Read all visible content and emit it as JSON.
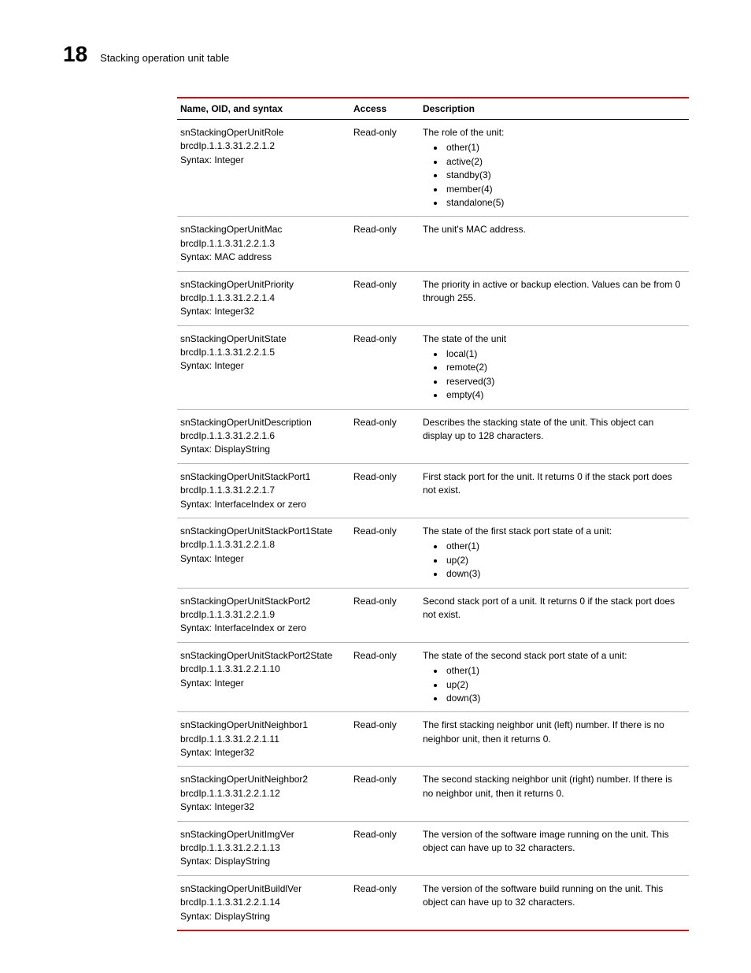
{
  "header": {
    "chapter_number": "18",
    "chapter_title": "Stacking operation unit table"
  },
  "table": {
    "columns": {
      "name": "Name, OID, and syntax",
      "access": "Access",
      "description": "Description"
    },
    "rows": [
      {
        "name": "snStackingOperUnitRole",
        "oid": "brcdIp.1.1.3.31.2.2.1.2",
        "syntax": "Syntax: Integer",
        "access": "Read-only",
        "description_text": "The role of the unit:",
        "bullets": [
          "other(1)",
          "active(2)",
          "standby(3)",
          "member(4)",
          "standalone(5)"
        ]
      },
      {
        "name": "snStackingOperUnitMac",
        "oid": "brcdIp.1.1.3.31.2.2.1.3",
        "syntax": "Syntax: MAC address",
        "access": "Read-only",
        "description_text": "The unit's MAC address.",
        "bullets": []
      },
      {
        "name": "snStackingOperUnitPriority",
        "oid": "brcdIp.1.1.3.31.2.2.1.4",
        "syntax": "Syntax: Integer32",
        "access": "Read-only",
        "description_text": "The priority in active or backup election. Values can be from 0 through 255.",
        "bullets": []
      },
      {
        "name": "snStackingOperUnitState",
        "oid": "brcdIp.1.1.3.31.2.2.1.5",
        "syntax": "Syntax: Integer",
        "access": "Read-only",
        "description_text": "The state of the unit",
        "bullets": [
          "local(1)",
          "remote(2)",
          "reserved(3)",
          "empty(4)"
        ]
      },
      {
        "name": "snStackingOperUnitDescription",
        "oid": "brcdIp.1.1.3.31.2.2.1.6",
        "syntax": "Syntax: DisplayString",
        "access": "Read-only",
        "description_text": "Describes the stacking state of the unit. This object can display up to 128 characters.",
        "bullets": []
      },
      {
        "name": "snStackingOperUnitStackPort1",
        "oid": "brcdIp.1.1.3.31.2.2.1.7",
        "syntax": "Syntax: InterfaceIndex or zero",
        "access": "Read-only",
        "description_text": "First stack port for the unit. It returns 0 if the stack port does not exist.",
        "bullets": []
      },
      {
        "name": "snStackingOperUnitStackPort1State",
        "oid": "brcdIp.1.1.3.31.2.2.1.8",
        "syntax": "Syntax: Integer",
        "access": "Read-only",
        "description_text": "The state of the first stack port state of a unit:",
        "bullets": [
          "other(1)",
          "up(2)",
          "down(3)"
        ]
      },
      {
        "name": "snStackingOperUnitStackPort2",
        "oid": "brcdIp.1.1.3.31.2.2.1.9",
        "syntax": "Syntax: InterfaceIndex or zero",
        "access": "Read-only",
        "description_text": "Second stack port of a unit. It returns 0 if the stack port does not exist.",
        "bullets": []
      },
      {
        "name": "snStackingOperUnitStackPort2State",
        "oid": "brcdIp.1.1.3.31.2.2.1.10",
        "syntax": "Syntax: Integer",
        "access": "Read-only",
        "description_text": "The state of the second stack port state of a unit:",
        "bullets": [
          "other(1)",
          "up(2)",
          "down(3)"
        ]
      },
      {
        "name": "snStackingOperUnitNeighbor1",
        "oid": "brcdIp.1.1.3.31.2.2.1.11",
        "syntax": "Syntax: Integer32",
        "access": "Read-only",
        "description_text": "The first stacking neighbor unit (left) number. If there is no neighbor unit, then it returns 0.",
        "bullets": []
      },
      {
        "name": "snStackingOperUnitNeighbor2",
        "oid": "brcdIp.1.1.3.31.2.2.1.12",
        "syntax": "Syntax: Integer32",
        "access": "Read-only",
        "description_text": "The second stacking neighbor unit (right) number. If there is no neighbor unit, then it returns 0.",
        "bullets": []
      },
      {
        "name": "snStackingOperUnitImgVer",
        "oid": "brcdIp.1.1.3.31.2.2.1.13",
        "syntax": "Syntax: DisplayString",
        "access": "Read-only",
        "description_text": "The version of the software image running on the unit. This object can have up to 32 characters.",
        "bullets": []
      },
      {
        "name": "snStackingOperUnitBuildlVer",
        "oid": "brcdIp.1.1.3.31.2.2.1.14",
        "syntax": "Syntax: DisplayString",
        "access": "Read-only",
        "description_text": "The version of the software build running on the unit. This object can have up to 32 characters.",
        "bullets": []
      }
    ]
  },
  "style": {
    "accent_color": "#c00000",
    "row_border_color": "#b3b3b3",
    "header_border_color": "#000000",
    "background_color": "#ffffff",
    "font_family": "Arial, Helvetica, sans-serif",
    "base_font_size_pt": 9,
    "chapter_number_fontsize_pt": 21
  }
}
